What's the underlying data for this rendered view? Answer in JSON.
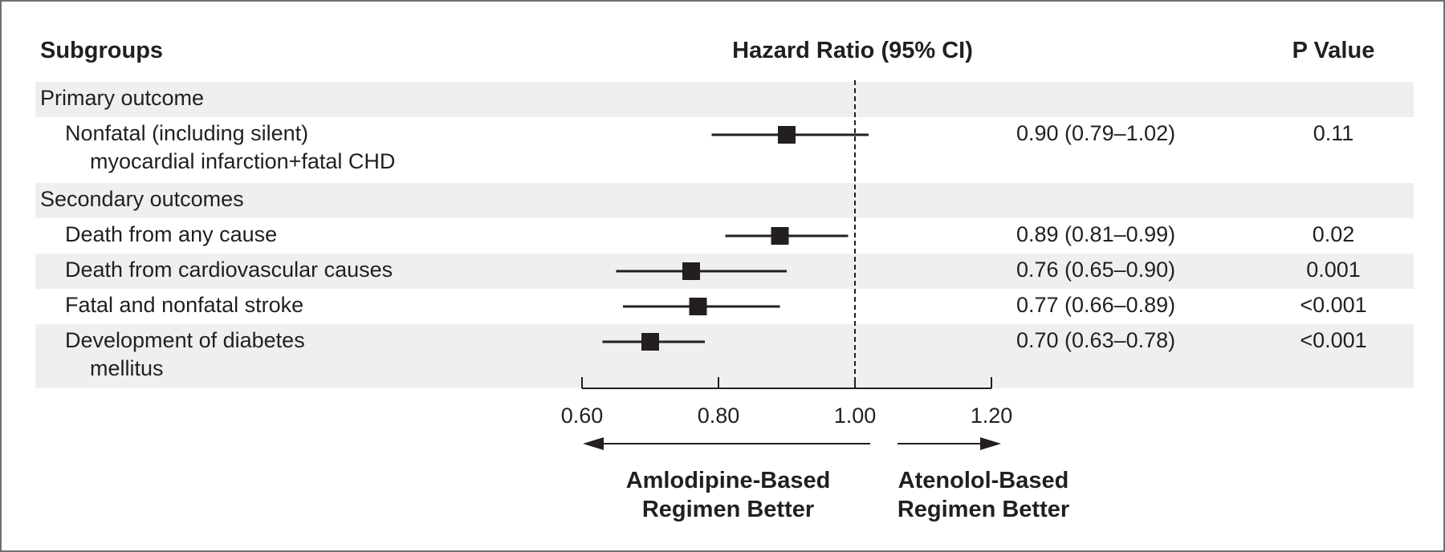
{
  "chart_data": {
    "type": "forest",
    "headers": {
      "subgroups": "Subgroups",
      "effect": "Hazard Ratio (95% CI)",
      "p_value": "P Value"
    },
    "rows": [
      {
        "kind": "section",
        "label": "Primary outcome"
      },
      {
        "kind": "item",
        "label": [
          "Nonfatal (including silent)",
          "myocardial infarction+fatal CHD"
        ],
        "hr": 0.9,
        "ci_low": 0.79,
        "ci_high": 1.02,
        "text": "0.90 (0.79–1.02)",
        "p": "0.11"
      },
      {
        "kind": "section",
        "label": "Secondary outcomes"
      },
      {
        "kind": "item",
        "label": [
          "Death from any cause"
        ],
        "hr": 0.89,
        "ci_low": 0.81,
        "ci_high": 0.99,
        "text": "0.89 (0.81–0.99)",
        "p": "0.02"
      },
      {
        "kind": "item",
        "label": [
          "Death from cardiovascular causes"
        ],
        "hr": 0.76,
        "ci_low": 0.65,
        "ci_high": 0.9,
        "text": "0.76 (0.65–0.90)",
        "p": "0.001"
      },
      {
        "kind": "item",
        "label": [
          "Fatal and nonfatal stroke"
        ],
        "hr": 0.77,
        "ci_low": 0.66,
        "ci_high": 0.89,
        "text": "0.77 (0.66–0.89)",
        "p": "<0.001"
      },
      {
        "kind": "item",
        "label": [
          "Development of diabetes",
          "mellitus"
        ],
        "hr": 0.7,
        "ci_low": 0.63,
        "ci_high": 0.78,
        "text": "0.70 (0.63–0.78)",
        "p": "<0.001"
      }
    ],
    "x_axis": {
      "min": 0.6,
      "max": 1.2,
      "ticks": [
        0.6,
        0.8,
        1.0,
        1.2
      ],
      "tick_labels": [
        "0.60",
        "0.80",
        "1.00",
        "1.20"
      ],
      "reference_line": 1.0
    },
    "direction_labels": {
      "left": [
        "Amlodipine-Based",
        "Regimen Better"
      ],
      "right": [
        "Atenolol-Based",
        "Regimen Better"
      ]
    },
    "colors": {
      "stripe": "#efefef",
      "ink": "#231f20",
      "border": "#6f6f6f"
    }
  }
}
